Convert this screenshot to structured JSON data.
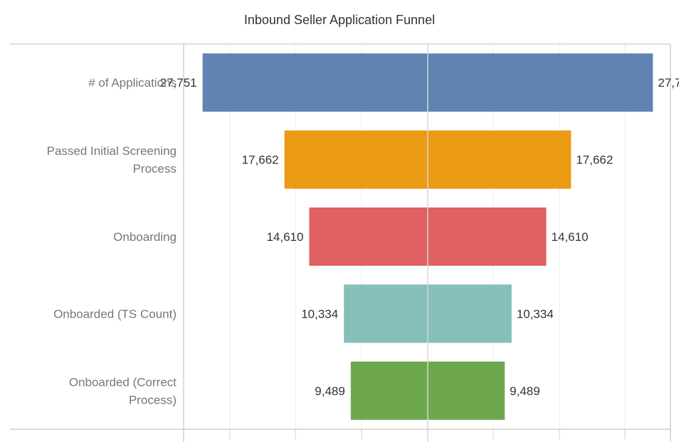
{
  "chart_data": {
    "type": "bar",
    "title": "Inbound Seller Application Funnel",
    "subtype": "mirrored funnel",
    "categories": [
      "# of Applications",
      "Passed Initial Screening Process",
      "Onboarding",
      "Onboarded (TS Count)",
      "Onboarded (Correct Process)"
    ],
    "category_lines": [
      [
        "# of Applications"
      ],
      [
        "Passed Initial Screening",
        "Process"
      ],
      [
        "Onboarding"
      ],
      [
        "Onboarded (TS Count)"
      ],
      [
        "Onboarded (Correct",
        "Process)"
      ]
    ],
    "values": [
      27751,
      17662,
      14610,
      10334,
      9489
    ],
    "value_labels": [
      "27,751",
      "17,662",
      "14,610",
      "10,334",
      "9,489"
    ],
    "colors": [
      "#5f84b2",
      "#eb9a14",
      "#df6161",
      "#86bfb9",
      "#6da84f"
    ],
    "xlim": [
      -30000,
      30000
    ],
    "grid": true,
    "legend": "none"
  }
}
